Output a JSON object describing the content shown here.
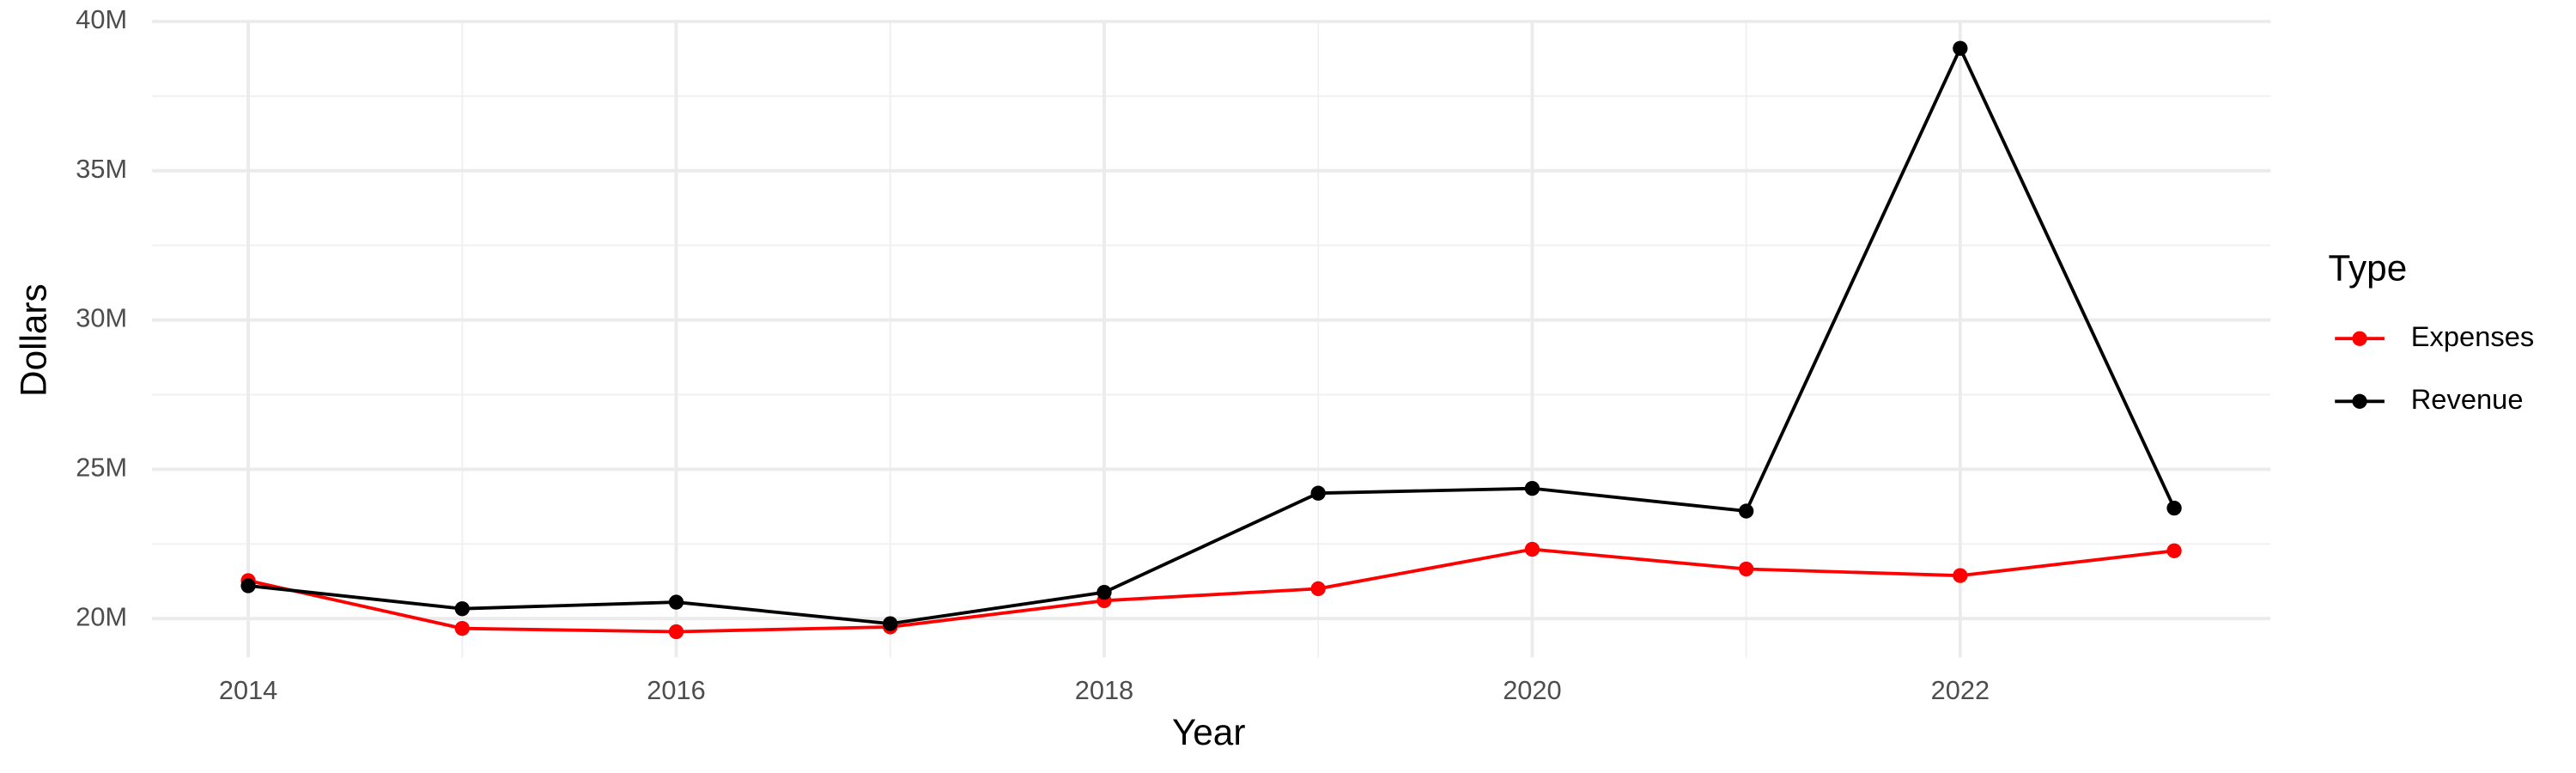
{
  "chart_data": {
    "type": "line",
    "x_label": "Year",
    "y_label": "Dollars",
    "x": [
      2014,
      2015,
      2016,
      2017,
      2018,
      2019,
      2020,
      2021,
      2022,
      2023
    ],
    "series": [
      {
        "name": "Expenses",
        "color": "#ff0000",
        "values": [
          21270000,
          19670000,
          19560000,
          19720000,
          20600000,
          21000000,
          22320000,
          21660000,
          21440000,
          22270000
        ]
      },
      {
        "name": "Revenue",
        "color": "#000000",
        "values": [
          21100000,
          20330000,
          20550000,
          19830000,
          20880000,
          24200000,
          24360000,
          23600000,
          39100000,
          23700000
        ]
      }
    ],
    "xlim": [
      2013.55,
      2023.45
    ],
    "xticks": [
      2014,
      2016,
      2018,
      2020,
      2022
    ],
    "ylim": [
      18700000,
      40000000
    ],
    "yticks": [
      {
        "value": 20000000,
        "label": "20M"
      },
      {
        "value": 25000000,
        "label": "25M"
      },
      {
        "value": 30000000,
        "label": "30M"
      },
      {
        "value": 35000000,
        "label": "35M"
      },
      {
        "value": 40000000,
        "label": "40M"
      }
    ],
    "grid": true,
    "minor_grid": true,
    "legend_title": "Type",
    "legend_position": "right"
  }
}
